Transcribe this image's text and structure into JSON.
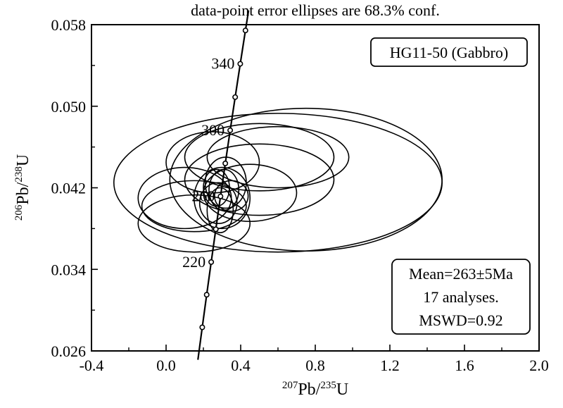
{
  "chart_data": {
    "type": "scatter",
    "subtype": "U-Pb concordia diagram with error ellipses",
    "title": "data-point error ellipses are 68.3% conf.",
    "xlabel": {
      "sup": "207",
      "base": "Pb/",
      "sup2": "235",
      "end": "U"
    },
    "ylabel": {
      "sup": "206",
      "base": "Pb/",
      "sup2": "238",
      "end": "U"
    },
    "xlim": [
      -0.4,
      2.0
    ],
    "ylim": [
      0.026,
      0.058
    ],
    "x_ticks": [
      "-0.4",
      "0.0",
      "0.4",
      "0.8",
      "1.2",
      "1.6",
      "2.0"
    ],
    "x_tick_values": [
      -0.4,
      0.0,
      0.4,
      0.8,
      1.2,
      1.6,
      2.0
    ],
    "y_ticks": [
      "0.026",
      "0.034",
      "0.042",
      "0.050",
      "0.058"
    ],
    "y_tick_values": [
      0.026,
      0.034,
      0.042,
      0.05,
      0.058
    ],
    "concordia_age_labels": [
      {
        "text": "340",
        "age": 340
      },
      {
        "text": "300",
        "age": 300
      },
      {
        "text": "260",
        "age": 260
      },
      {
        "text": "220",
        "age": 220
      }
    ],
    "concordia_markers_Ma": [
      180,
      200,
      220,
      240,
      260,
      280,
      300,
      320,
      340,
      360
    ],
    "sample_label": "HG11-50 (Gabbro)",
    "result_lines": [
      "Mean=263±5Ma",
      "17 analyses.",
      "MSWD=0.92"
    ],
    "ellipses": [
      {
        "cx": 0.6,
        "cy": 0.0425,
        "rx": 0.88,
        "ry": 0.0068
      },
      {
        "cx": 0.75,
        "cy": 0.0428,
        "rx": 0.73,
        "ry": 0.007
      },
      {
        "cx": 0.5,
        "cy": 0.045,
        "rx": 0.4,
        "ry": 0.0033
      },
      {
        "cx": 0.6,
        "cy": 0.045,
        "rx": 0.38,
        "ry": 0.003
      },
      {
        "cx": 0.25,
        "cy": 0.0445,
        "rx": 0.25,
        "ry": 0.003
      },
      {
        "cx": 0.5,
        "cy": 0.0428,
        "rx": 0.4,
        "ry": 0.0035
      },
      {
        "cx": 0.45,
        "cy": 0.0415,
        "rx": 0.25,
        "ry": 0.0028
      },
      {
        "cx": 0.1,
        "cy": 0.041,
        "rx": 0.25,
        "ry": 0.003
      },
      {
        "cx": 0.15,
        "cy": 0.0402,
        "rx": 0.28,
        "ry": 0.0025
      },
      {
        "cx": 0.15,
        "cy": 0.0385,
        "rx": 0.3,
        "ry": 0.0028
      },
      {
        "cx": 0.31,
        "cy": 0.0418,
        "rx": 0.08,
        "ry": 0.002
      },
      {
        "cx": 0.32,
        "cy": 0.0425,
        "rx": 0.11,
        "ry": 0.0025
      },
      {
        "cx": 0.35,
        "cy": 0.0412,
        "rx": 0.09,
        "ry": 0.0015
      },
      {
        "cx": 0.27,
        "cy": 0.042,
        "rx": 0.07,
        "ry": 0.0018
      },
      {
        "cx": 0.28,
        "cy": 0.0405,
        "rx": 0.1,
        "ry": 0.002
      },
      {
        "cx": 0.3,
        "cy": 0.041,
        "rx": 0.15,
        "ry": 0.003
      },
      {
        "cx": 0.29,
        "cy": 0.0398,
        "rx": 0.07,
        "ry": 0.0022
      }
    ],
    "grid": false,
    "sample_box_placement": "top-right",
    "result_box_placement": "bottom-right"
  }
}
